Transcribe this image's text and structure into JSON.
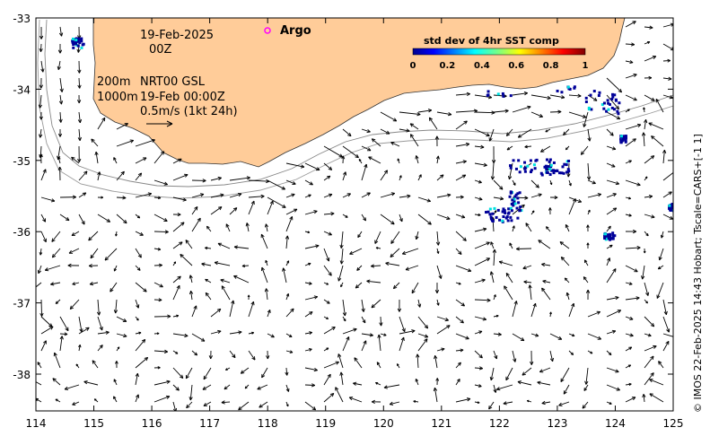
{
  "map": {
    "date_line": "19-Feb-2025",
    "time_line": "00Z",
    "legend_argo": "Argo",
    "depth_line_1": "200m",
    "depth_line_2": "1000m",
    "product_line": "NRT00 GSL",
    "product_time": "19-Feb 00:00Z",
    "scale_label": "0.5m/s (1kt 24h)",
    "credit": "© IMOS 22-Feb-2025 14:43 Hobart; Tscale=CARS+[-1 1]",
    "colorbar": {
      "title": "std dev of 4hr SST comp",
      "ticks": [
        "0",
        "0.2",
        "0.4",
        "0.6",
        "0.8",
        "1"
      ]
    },
    "x_ticks": [
      "114",
      "115",
      "116",
      "117",
      "118",
      "119",
      "120",
      "121",
      "122",
      "123",
      "124",
      "125"
    ],
    "y_ticks": [
      "-33",
      "-34",
      "-35",
      "-36",
      "-37",
      "-38"
    ],
    "colors": {
      "land": "#ffcc99",
      "land_edge": "#333333",
      "isobath": "#888888",
      "argo_marker": "#ff00ff",
      "sst_patch": "#000099"
    }
  },
  "chart_data": {
    "type": "map",
    "xlim": [
      114,
      125
    ],
    "ylim": [
      -38.55,
      -33
    ],
    "x_unit": "degrees longitude",
    "y_unit": "degrees latitude",
    "colorbar_range": [
      0,
      1
    ]
  }
}
